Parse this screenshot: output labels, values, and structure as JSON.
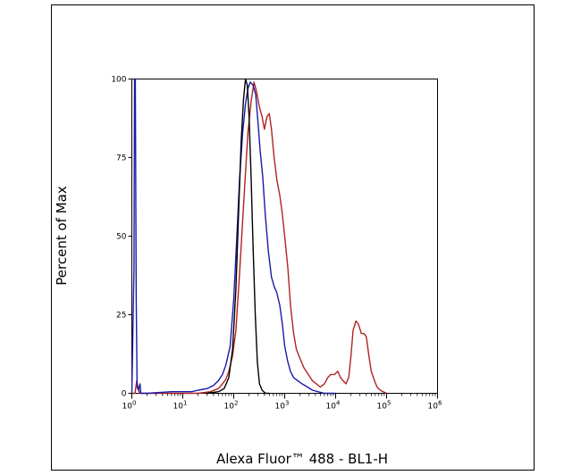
{
  "chart_data": {
    "type": "line",
    "xlabel": "Alexa Fluor™ 488 - BL1-H",
    "ylabel": "Percent of Max",
    "x_scale": "log",
    "xlim": [
      1,
      1000000
    ],
    "ylim": [
      0,
      100
    ],
    "x_ticks": [
      {
        "value": 1,
        "base": "10",
        "exp": "0"
      },
      {
        "value": 10,
        "base": "10",
        "exp": "1"
      },
      {
        "value": 100,
        "base": "10",
        "exp": "2"
      },
      {
        "value": 1000,
        "base": "10",
        "exp": "3"
      },
      {
        "value": 10000,
        "base": "10",
        "exp": "4"
      },
      {
        "value": 100000,
        "base": "10",
        "exp": "5"
      },
      {
        "value": 1000000,
        "base": "10",
        "exp": "6"
      }
    ],
    "y_ticks": [
      {
        "value": 0,
        "label": "0"
      },
      {
        "value": 25,
        "label": "25"
      },
      {
        "value": 50,
        "label": "50"
      },
      {
        "value": 75,
        "label": "75"
      },
      {
        "value": 100,
        "label": "100"
      }
    ],
    "grid": false,
    "series": [
      {
        "color": "#b22222",
        "points": [
          [
            1,
            0
          ],
          [
            1.15,
            0
          ],
          [
            1.25,
            4
          ],
          [
            1.35,
            1
          ],
          [
            1.45,
            0
          ],
          [
            1.6,
            0
          ],
          [
            3,
            0
          ],
          [
            10,
            0
          ],
          [
            20,
            0
          ],
          [
            35,
            0.5
          ],
          [
            50,
            1.5
          ],
          [
            60,
            3
          ],
          [
            70,
            4.5
          ],
          [
            80,
            7
          ],
          [
            95,
            12
          ],
          [
            110,
            20
          ],
          [
            130,
            38
          ],
          [
            150,
            55
          ],
          [
            170,
            70
          ],
          [
            190,
            83
          ],
          [
            220,
            93
          ],
          [
            250,
            99
          ],
          [
            280,
            96
          ],
          [
            320,
            91
          ],
          [
            360,
            88
          ],
          [
            400,
            84
          ],
          [
            450,
            88
          ],
          [
            500,
            89
          ],
          [
            550,
            84
          ],
          [
            620,
            75
          ],
          [
            700,
            68
          ],
          [
            800,
            63
          ],
          [
            900,
            57
          ],
          [
            1000,
            50
          ],
          [
            1150,
            40
          ],
          [
            1300,
            28
          ],
          [
            1500,
            19
          ],
          [
            1700,
            14
          ],
          [
            2000,
            11
          ],
          [
            2400,
            8
          ],
          [
            2900,
            6
          ],
          [
            3500,
            4
          ],
          [
            4200,
            3
          ],
          [
            5000,
            2
          ],
          [
            6000,
            3
          ],
          [
            7000,
            5
          ],
          [
            8000,
            6
          ],
          [
            9500,
            6
          ],
          [
            11000,
            7
          ],
          [
            12500,
            5
          ],
          [
            14000,
            4
          ],
          [
            16000,
            3
          ],
          [
            18000,
            5
          ],
          [
            20000,
            12
          ],
          [
            22000,
            20
          ],
          [
            25000,
            23
          ],
          [
            28000,
            22
          ],
          [
            32000,
            19
          ],
          [
            36000,
            19
          ],
          [
            40000,
            18
          ],
          [
            45000,
            12
          ],
          [
            50000,
            7
          ],
          [
            58000,
            4
          ],
          [
            65000,
            2
          ],
          [
            75000,
            1
          ],
          [
            85000,
            0.5
          ],
          [
            100000,
            0
          ]
        ]
      },
      {
        "color": "#1a1aa8",
        "points": [
          [
            1,
            0
          ],
          [
            1.1,
            40
          ],
          [
            1.13,
            100
          ],
          [
            1.17,
            100
          ],
          [
            1.22,
            30
          ],
          [
            1.27,
            2
          ],
          [
            1.35,
            1
          ],
          [
            1.45,
            3
          ],
          [
            1.5,
            0
          ],
          [
            2,
            0
          ],
          [
            6,
            0.5
          ],
          [
            10,
            0.5
          ],
          [
            15,
            0.5
          ],
          [
            20,
            1
          ],
          [
            30,
            1.5
          ],
          [
            40,
            2.5
          ],
          [
            50,
            4
          ],
          [
            60,
            6
          ],
          [
            70,
            9
          ],
          [
            85,
            15
          ],
          [
            100,
            30
          ],
          [
            115,
            50
          ],
          [
            130,
            68
          ],
          [
            150,
            83
          ],
          [
            170,
            92
          ],
          [
            190,
            97
          ],
          [
            210,
            99
          ],
          [
            240,
            98
          ],
          [
            270,
            95
          ],
          [
            300,
            86
          ],
          [
            330,
            77
          ],
          [
            370,
            69
          ],
          [
            420,
            56
          ],
          [
            480,
            45
          ],
          [
            550,
            37
          ],
          [
            620,
            34
          ],
          [
            700,
            32
          ],
          [
            800,
            28
          ],
          [
            900,
            22
          ],
          [
            1000,
            15
          ],
          [
            1150,
            10
          ],
          [
            1300,
            7
          ],
          [
            1500,
            5
          ],
          [
            1800,
            4
          ],
          [
            2200,
            3
          ],
          [
            2800,
            2
          ],
          [
            3500,
            1
          ],
          [
            4500,
            0.5
          ],
          [
            6000,
            0
          ],
          [
            10000,
            0
          ]
        ]
      },
      {
        "color": "#000000",
        "points": [
          [
            30,
            0
          ],
          [
            50,
            0.5
          ],
          [
            65,
            1.5
          ],
          [
            80,
            5
          ],
          [
            95,
            14
          ],
          [
            110,
            33
          ],
          [
            125,
            58
          ],
          [
            140,
            80
          ],
          [
            155,
            93
          ],
          [
            170,
            100
          ],
          [
            185,
            98
          ],
          [
            200,
            88
          ],
          [
            220,
            68
          ],
          [
            240,
            46
          ],
          [
            265,
            25
          ],
          [
            290,
            10
          ],
          [
            320,
            3
          ],
          [
            360,
            1
          ],
          [
            420,
            0
          ],
          [
            500,
            0
          ]
        ]
      }
    ]
  }
}
